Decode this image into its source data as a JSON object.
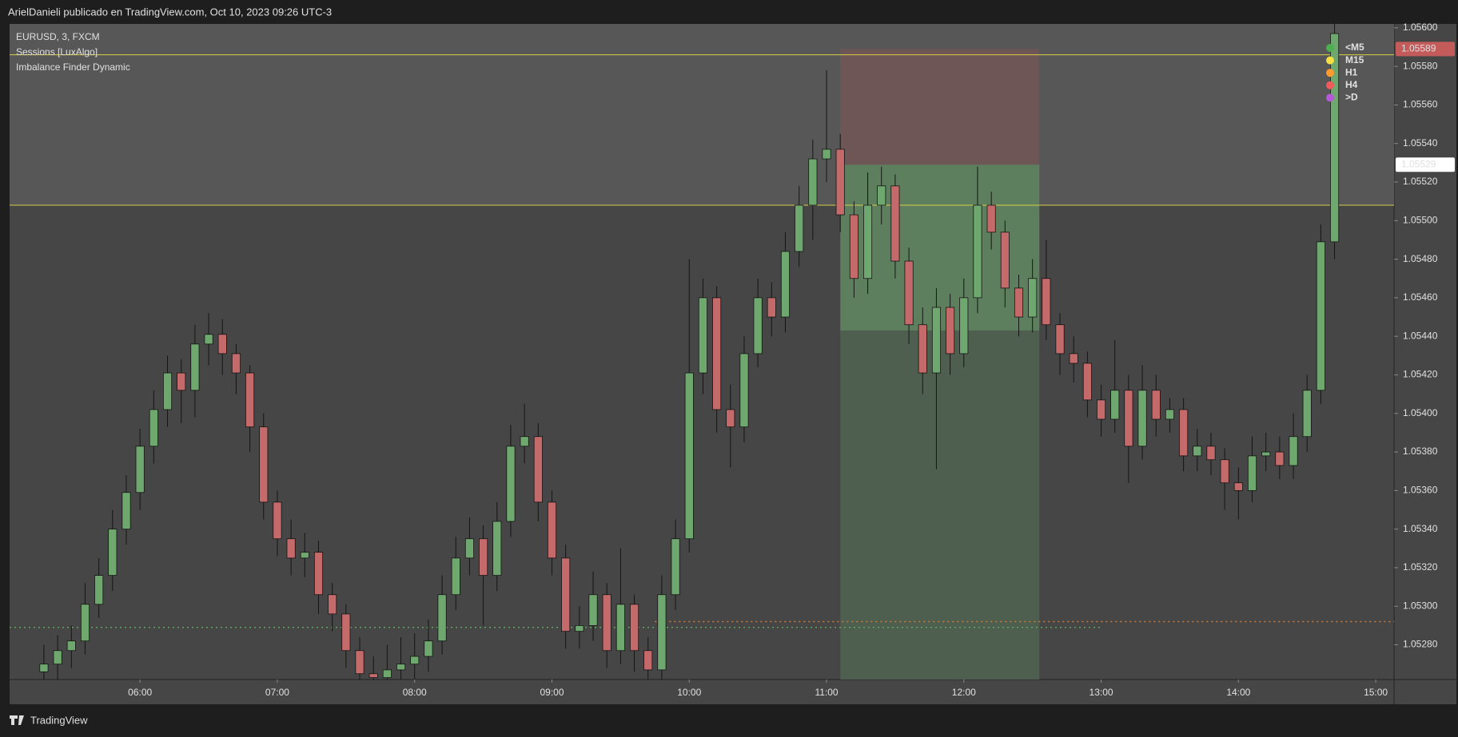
{
  "header": {
    "title": "ArielDanieli publicado en TradingView.com, Oct 10, 2023 09:26 UTC-3",
    "footer": "TradingView"
  },
  "legend": [
    "EURUSD, 3, FXCM",
    "Sessions [LuxAlgo]",
    "Imbalance Finder Dynamic"
  ],
  "chart_data": {
    "type": "candlestick",
    "up_color": "#6fa86f",
    "down_color": "#c46a6a",
    "x": [
      "05:18",
      "05:24",
      "05:30",
      "05:36",
      "05:42",
      "05:48",
      "05:54",
      "06:00",
      "06:06",
      "06:12",
      "06:18",
      "06:24",
      "06:30",
      "06:36",
      "06:42",
      "06:48",
      "06:54",
      "07:00",
      "07:06",
      "07:12",
      "07:18",
      "07:24",
      "07:30",
      "07:36",
      "07:42",
      "07:48",
      "07:54",
      "08:00",
      "08:06",
      "08:12",
      "08:18",
      "08:24",
      "08:30",
      "08:36",
      "08:42",
      "08:48",
      "08:54",
      "09:00",
      "09:06",
      "09:12",
      "09:18",
      "09:24",
      "09:30",
      "09:36",
      "09:42",
      "09:48",
      "09:54",
      "10:00",
      "10:06",
      "10:12",
      "10:18",
      "10:24",
      "10:30",
      "10:36",
      "10:42",
      "10:48",
      "10:54",
      "11:00",
      "11:06",
      "11:12",
      "11:18",
      "11:24",
      "11:30",
      "11:36",
      "11:42",
      "11:48",
      "11:54",
      "12:00",
      "12:06",
      "12:12",
      "12:18",
      "12:24",
      "12:30",
      "12:36",
      "12:42",
      "12:48",
      "12:54",
      "13:00",
      "13:06",
      "13:12",
      "13:18",
      "13:24",
      "13:30",
      "13:36",
      "13:42",
      "13:48",
      "13:54",
      "14:00",
      "14:06",
      "14:12",
      "14:18",
      "14:24",
      "14:30",
      "14:36",
      "14:42"
    ],
    "open": [
      1.05266,
      1.0527,
      1.05277,
      1.05282,
      1.05301,
      1.05316,
      1.0534,
      1.05359,
      1.05383,
      1.05402,
      1.05421,
      1.05412,
      1.05436,
      1.05441,
      1.05431,
      1.05421,
      1.05393,
      1.05354,
      1.05335,
      1.05325,
      1.05328,
      1.05306,
      1.05296,
      1.05277,
      1.05265,
      1.05263,
      1.05267,
      1.0527,
      1.05274,
      1.05282,
      1.05306,
      1.05325,
      1.05335,
      1.05316,
      1.05344,
      1.05383,
      1.05388,
      1.05354,
      1.05325,
      1.05287,
      1.0529,
      1.05306,
      1.05277,
      1.05301,
      1.05277,
      1.05267,
      1.05306,
      1.05335,
      1.05421,
      1.0546,
      1.05402,
      1.05393,
      1.05431,
      1.0546,
      1.0545,
      1.05484,
      1.05508,
      1.05532,
      1.05537,
      1.05503,
      1.0547,
      1.05508,
      1.05518,
      1.05479,
      1.05446,
      1.05421,
      1.05455,
      1.05431,
      1.0546,
      1.05508,
      1.05494,
      1.05465,
      1.0545,
      1.0547,
      1.05446,
      1.05431,
      1.05426,
      1.05407,
      1.05397,
      1.05412,
      1.05383,
      1.05412,
      1.05397,
      1.05402,
      1.05378,
      1.05383,
      1.05376,
      1.05364,
      1.0536,
      1.05378,
      1.0538,
      1.05373,
      1.05388,
      1.05412,
      1.05489
    ],
    "high": [
      1.0528,
      1.05285,
      1.0529,
      1.05312,
      1.05325,
      1.0535,
      1.05368,
      1.05392,
      1.05412,
      1.0543,
      1.05428,
      1.05446,
      1.05452,
      1.05449,
      1.05436,
      1.05425,
      1.054,
      1.0536,
      1.05345,
      1.05338,
      1.05334,
      1.05312,
      1.05301,
      1.05284,
      1.05274,
      1.0528,
      1.05284,
      1.05286,
      1.05293,
      1.05316,
      1.05336,
      1.05346,
      1.05342,
      1.05354,
      1.05394,
      1.05405,
      1.05395,
      1.0536,
      1.05332,
      1.053,
      1.05318,
      1.05312,
      1.0533,
      1.05306,
      1.05284,
      1.05316,
      1.05345,
      1.0548,
      1.0547,
      1.05466,
      1.05415,
      1.0544,
      1.0547,
      1.05468,
      1.05494,
      1.05518,
      1.05542,
      1.05578,
      1.05545,
      1.0551,
      1.05525,
      1.05528,
      1.05524,
      1.05486,
      1.05455,
      1.05465,
      1.05462,
      1.0547,
      1.05528,
      1.05515,
      1.055,
      1.05472,
      1.0548,
      1.0549,
      1.05452,
      1.0544,
      1.05432,
      1.05415,
      1.05438,
      1.0542,
      1.05425,
      1.0542,
      1.05408,
      1.05408,
      1.05392,
      1.0539,
      1.05382,
      1.05372,
      1.05388,
      1.0539,
      1.05388,
      1.054,
      1.0542,
      1.05498,
      1.0561
    ],
    "low": [
      1.05255,
      1.05262,
      1.05268,
      1.05275,
      1.05294,
      1.05308,
      1.05332,
      1.0535,
      1.05374,
      1.05393,
      1.05395,
      1.05398,
      1.05425,
      1.0542,
      1.0541,
      1.0538,
      1.05345,
      1.05326,
      1.05316,
      1.05315,
      1.05296,
      1.05287,
      1.05268,
      1.05255,
      1.05254,
      1.05256,
      1.05258,
      1.05262,
      1.05266,
      1.05275,
      1.05298,
      1.05316,
      1.0529,
      1.05308,
      1.05336,
      1.05374,
      1.05344,
      1.05316,
      1.05278,
      1.05278,
      1.05282,
      1.05268,
      1.0527,
      1.05266,
      1.05256,
      1.05258,
      1.05298,
      1.05328,
      1.0541,
      1.0539,
      1.05372,
      1.05385,
      1.05424,
      1.0544,
      1.05442,
      1.05476,
      1.0549,
      1.0552,
      1.05494,
      1.0546,
      1.05462,
      1.05498,
      1.0547,
      1.05436,
      1.0541,
      1.05371,
      1.0542,
      1.05424,
      1.05452,
      1.05485,
      1.05455,
      1.0544,
      1.05442,
      1.05438,
      1.0542,
      1.05416,
      1.05398,
      1.05388,
      1.0539,
      1.05364,
      1.05376,
      1.05388,
      1.0539,
      1.0537,
      1.0537,
      1.05368,
      1.0535,
      1.05345,
      1.05354,
      1.0537,
      1.05366,
      1.05366,
      1.0538,
      1.05405,
      1.0548
    ],
    "close": [
      1.0527,
      1.05277,
      1.05282,
      1.05301,
      1.05316,
      1.0534,
      1.05359,
      1.05383,
      1.05402,
      1.05421,
      1.05412,
      1.05436,
      1.05441,
      1.05431,
      1.05421,
      1.05393,
      1.05354,
      1.05335,
      1.05325,
      1.05328,
      1.05306,
      1.05296,
      1.05277,
      1.05265,
      1.05263,
      1.05267,
      1.0527,
      1.05274,
      1.05282,
      1.05306,
      1.05325,
      1.05335,
      1.05316,
      1.05344,
      1.05383,
      1.05388,
      1.05354,
      1.05325,
      1.05287,
      1.0529,
      1.05306,
      1.05277,
      1.05301,
      1.05277,
      1.05267,
      1.05306,
      1.05335,
      1.05421,
      1.0546,
      1.05402,
      1.05393,
      1.05431,
      1.0546,
      1.0545,
      1.05484,
      1.05508,
      1.05532,
      1.05537,
      1.05503,
      1.0547,
      1.05508,
      1.05518,
      1.05479,
      1.05446,
      1.05421,
      1.05455,
      1.05431,
      1.0546,
      1.05508,
      1.05494,
      1.05465,
      1.0545,
      1.0547,
      1.05446,
      1.05431,
      1.05426,
      1.05407,
      1.05397,
      1.05412,
      1.05383,
      1.05412,
      1.05397,
      1.05402,
      1.05378,
      1.05383,
      1.05376,
      1.05364,
      1.0536,
      1.05378,
      1.0538,
      1.05373,
      1.05388,
      1.05412,
      1.05489,
      1.05597
    ],
    "xlim": [
      "05:03",
      "15:08"
    ],
    "xticks": [
      "06:00",
      "07:00",
      "08:00",
      "09:00",
      "10:00",
      "11:00",
      "12:00",
      "13:00",
      "14:00",
      "15:00"
    ],
    "ylim": [
      1.05262,
      1.05602
    ],
    "yticks": [
      {
        "value": 1.0528,
        "label": "1.05280"
      },
      {
        "value": 1.053,
        "label": "1.05300"
      },
      {
        "value": 1.0532,
        "label": "1.05320"
      },
      {
        "value": 1.0534,
        "label": "1.05340"
      },
      {
        "value": 1.0536,
        "label": "1.05360"
      },
      {
        "value": 1.0538,
        "label": "1.05380"
      },
      {
        "value": 1.054,
        "label": "1.05400"
      },
      {
        "value": 1.0542,
        "label": "1.05420"
      },
      {
        "value": 1.0544,
        "label": "1.05440"
      },
      {
        "value": 1.0546,
        "label": "1.05460"
      },
      {
        "value": 1.0548,
        "label": "1.05480"
      },
      {
        "value": 1.055,
        "label": "1.05500"
      },
      {
        "value": 1.0552,
        "label": "1.05520"
      },
      {
        "value": 1.0554,
        "label": "1.05540"
      },
      {
        "value": 1.0556,
        "label": "1.05560"
      },
      {
        "value": 1.0558,
        "label": "1.05580"
      },
      {
        "value": 1.056,
        "label": "1.05600"
      }
    ],
    "hlines": [
      {
        "value": 1.05586,
        "color": "#d8cc48"
      },
      {
        "value": 1.05508,
        "color": "#d8cc48"
      }
    ],
    "levels": [
      {
        "value": 1.05289,
        "color": "#5fa55f",
        "start": "05:03",
        "end": "13:00"
      },
      {
        "value": 1.05292,
        "color": "#d07a3a",
        "start": "09:45",
        "end": "15:08"
      }
    ],
    "position": {
      "start": "11:06",
      "end": "12:33",
      "stop": 1.05589,
      "entry": 1.05529,
      "target": 1.05443
    },
    "price_labels": [
      {
        "value": 1.05589,
        "color": "#c45b5b"
      },
      {
        "value": 1.05529,
        "color": "#ffffff"
      }
    ],
    "timeframes": [
      {
        "label": "<M5",
        "color": "#4caf50"
      },
      {
        "label": "M15",
        "color": "#f5e042"
      },
      {
        "label": "H1",
        "color": "#ff9a2e"
      },
      {
        "label": "H4",
        "color": "#f05a5a"
      },
      {
        "label": ">D",
        "color": "#b45ad8"
      }
    ]
  }
}
